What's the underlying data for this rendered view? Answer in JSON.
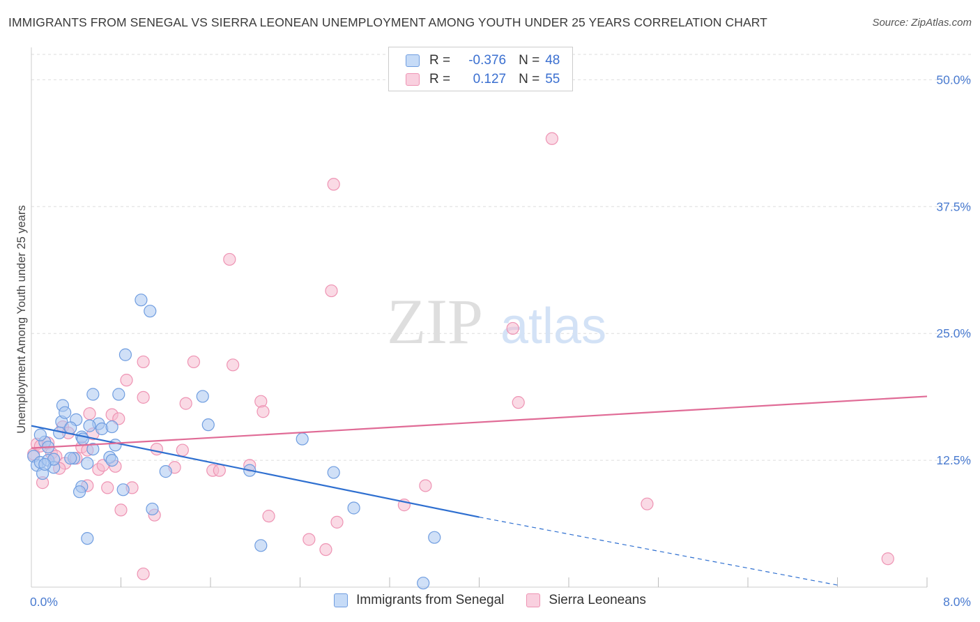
{
  "title": "IMMIGRANTS FROM SENEGAL VS SIERRA LEONEAN UNEMPLOYMENT AMONG YOUTH UNDER 25 YEARS CORRELATION CHART",
  "source": "Source: ZipAtlas.com",
  "watermark": {
    "zip": "ZIP",
    "atlas": "atlas"
  },
  "legend": {
    "series1": {
      "r_label": "R =",
      "r_value": "-0.376",
      "n_label": "N =",
      "n_value": "48"
    },
    "series2": {
      "r_label": "R =",
      "r_value": "0.127",
      "n_label": "N =",
      "n_value": "55"
    }
  },
  "bottom_legend": {
    "series1": "Immigrants from Senegal",
    "series2": "Sierra Leoneans"
  },
  "colors": {
    "series1_fill": "#a9c7f0",
    "series1_stroke": "#6f9de0",
    "series1_line": "#2e6fd0",
    "series2_fill": "#f6bcd0",
    "series2_stroke": "#ee93b3",
    "series2_line": "#e06b96",
    "tick_text": "#4a7bd0",
    "grid": "#dddddd"
  },
  "chart_data": {
    "type": "scatter",
    "title": "IMMIGRANTS FROM SENEGAL VS SIERRA LEONEAN UNEMPLOYMENT AMONG YOUTH UNDER 25 YEARS CORRELATION CHART",
    "xlabel": "",
    "ylabel": "Unemployment Among Youth under 25 years",
    "xlim": [
      0,
      8
    ],
    "ylim": [
      0,
      52.5
    ],
    "x_tick_labels": [
      "0.0%",
      "8.0%"
    ],
    "y_ticks": [
      12.5,
      25.0,
      37.5,
      50.0
    ],
    "y_tick_labels": [
      "12.5%",
      "25.0%",
      "37.5%",
      "50.0%"
    ],
    "grid": true,
    "legend_position": "top-center",
    "series": [
      {
        "name": "Immigrants from Senegal",
        "r": -0.376,
        "n": 48,
        "trend": {
          "x0": 0,
          "y0": 15.9,
          "x1": 4.0,
          "y1": 6.9,
          "dashed_to_x": 7.2,
          "dashed_to_y": 0.2
        },
        "points": [
          [
            0.02,
            12.9
          ],
          [
            0.05,
            12.0
          ],
          [
            0.08,
            12.3
          ],
          [
            0.1,
            11.2
          ],
          [
            0.12,
            14.3
          ],
          [
            0.15,
            12.5
          ],
          [
            0.08,
            15.0
          ],
          [
            0.27,
            16.3
          ],
          [
            0.4,
            16.5
          ],
          [
            0.25,
            15.2
          ],
          [
            0.2,
            11.8
          ],
          [
            0.15,
            13.8
          ],
          [
            0.2,
            12.6
          ],
          [
            0.12,
            12.1
          ],
          [
            0.28,
            17.9
          ],
          [
            0.3,
            17.2
          ],
          [
            0.35,
            15.7
          ],
          [
            0.38,
            12.7
          ],
          [
            0.45,
            14.8
          ],
          [
            0.55,
            13.6
          ],
          [
            0.6,
            16.1
          ],
          [
            0.63,
            15.6
          ],
          [
            0.72,
            15.8
          ],
          [
            0.52,
            15.9
          ],
          [
            0.55,
            19.0
          ],
          [
            0.78,
            19.0
          ],
          [
            0.7,
            12.8
          ],
          [
            0.45,
            9.9
          ],
          [
            0.46,
            14.6
          ],
          [
            0.72,
            12.5
          ],
          [
            0.43,
            9.4
          ],
          [
            0.35,
            12.7
          ],
          [
            0.5,
            12.2
          ],
          [
            0.75,
            14.0
          ],
          [
            0.82,
            9.6
          ],
          [
            0.98,
            28.3
          ],
          [
            1.06,
            27.2
          ],
          [
            0.84,
            22.9
          ],
          [
            1.08,
            7.7
          ],
          [
            1.2,
            11.4
          ],
          [
            1.53,
            18.8
          ],
          [
            1.58,
            16.0
          ],
          [
            1.95,
            11.5
          ],
          [
            2.05,
            4.1
          ],
          [
            2.42,
            14.6
          ],
          [
            2.7,
            11.3
          ],
          [
            2.88,
            7.8
          ],
          [
            3.6,
            4.9
          ],
          [
            3.5,
            0.4
          ],
          [
            0.5,
            4.8
          ]
        ]
      },
      {
        "name": "Sierra Leoneans",
        "r": 0.127,
        "n": 55,
        "trend": {
          "x0": 0,
          "y0": 13.7,
          "x1": 8.0,
          "y1": 18.8
        },
        "points": [
          [
            0.02,
            13.1
          ],
          [
            0.05,
            14.1
          ],
          [
            0.08,
            13.9
          ],
          [
            0.1,
            10.3
          ],
          [
            0.15,
            14.2
          ],
          [
            0.18,
            13.2
          ],
          [
            0.22,
            12.9
          ],
          [
            0.28,
            15.8
          ],
          [
            0.3,
            12.2
          ],
          [
            0.33,
            15.2
          ],
          [
            0.4,
            12.7
          ],
          [
            0.45,
            13.8
          ],
          [
            0.5,
            10.0
          ],
          [
            0.52,
            17.1
          ],
          [
            0.55,
            15.1
          ],
          [
            0.6,
            11.6
          ],
          [
            0.64,
            12.0
          ],
          [
            0.68,
            9.8
          ],
          [
            0.72,
            17.0
          ],
          [
            0.75,
            11.9
          ],
          [
            0.78,
            16.6
          ],
          [
            0.8,
            7.6
          ],
          [
            0.85,
            20.4
          ],
          [
            0.9,
            9.8
          ],
          [
            1.0,
            18.7
          ],
          [
            1.0,
            22.2
          ],
          [
            1.12,
            13.6
          ],
          [
            1.28,
            11.8
          ],
          [
            1.35,
            13.5
          ],
          [
            1.38,
            18.1
          ],
          [
            1.45,
            22.2
          ],
          [
            1.62,
            11.5
          ],
          [
            1.68,
            11.5
          ],
          [
            1.8,
            21.9
          ],
          [
            1.77,
            32.3
          ],
          [
            1.95,
            12.0
          ],
          [
            2.05,
            18.3
          ],
          [
            2.07,
            17.3
          ],
          [
            2.12,
            7.0
          ],
          [
            2.48,
            4.7
          ],
          [
            2.63,
            3.7
          ],
          [
            2.68,
            29.2
          ],
          [
            2.7,
            39.7
          ],
          [
            2.73,
            6.4
          ],
          [
            3.33,
            8.1
          ],
          [
            3.52,
            10.0
          ],
          [
            4.3,
            25.5
          ],
          [
            4.35,
            18.2
          ],
          [
            4.65,
            44.2
          ],
          [
            5.5,
            8.2
          ],
          [
            7.65,
            2.8
          ],
          [
            1.1,
            7.1
          ],
          [
            1.0,
            1.3
          ],
          [
            0.5,
            13.5
          ],
          [
            0.25,
            11.7
          ]
        ]
      }
    ]
  }
}
